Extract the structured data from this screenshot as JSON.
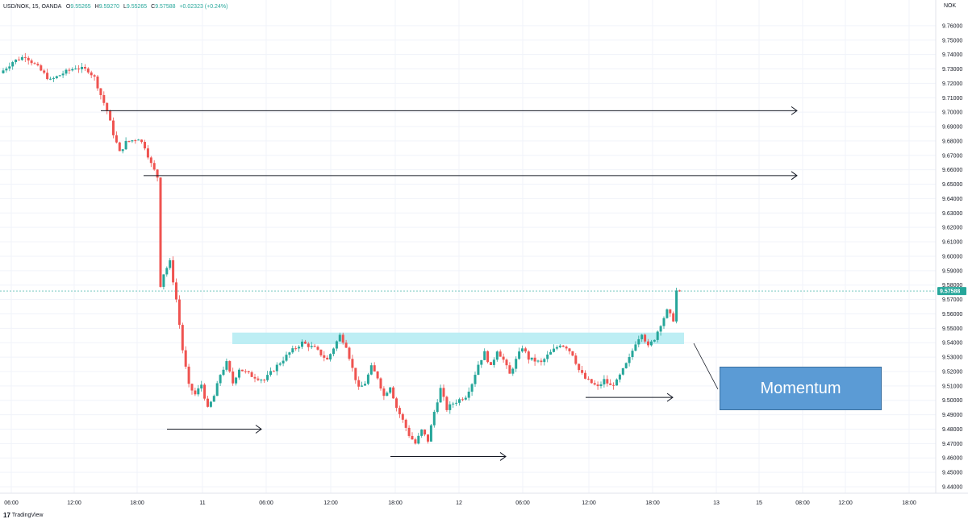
{
  "header": {
    "symbol_line": "USD/NOK, 15, OANDA",
    "open_label": "O",
    "open_value": "9.55265",
    "high_label": "H",
    "high_value": "9.59270",
    "low_label": "L",
    "low_value": "9.55265",
    "close_label": "C",
    "close_value": "9.57588",
    "change": "+0.02323 (+0.24%)",
    "currency": "NOK"
  },
  "branding": {
    "logo_text": "TradingView",
    "logo_mark": "17"
  },
  "annotation": {
    "label": "Momentum"
  },
  "colors": {
    "up": "#26a69a",
    "down": "#ef5350",
    "zone": "#b2ebf2",
    "price_tag": "#26a69a",
    "grid": "#f0f3fa",
    "box": "#5b9bd5"
  },
  "chart_data": {
    "type": "candlestick",
    "title": "USD/NOK, 15, OANDA",
    "currency": "NOK",
    "last_price": "9.57588",
    "ylim": [
      9.44,
      9.77
    ],
    "y_ticks": [
      "9.76000",
      "9.75000",
      "9.74000",
      "9.73000",
      "9.72000",
      "9.71000",
      "9.70000",
      "9.69000",
      "9.68000",
      "9.67000",
      "9.66000",
      "9.65000",
      "9.64000",
      "9.63000",
      "9.62000",
      "9.61000",
      "9.60000",
      "9.59000",
      "9.58000",
      "9.57000",
      "9.56000",
      "9.55000",
      "9.54000",
      "9.53000",
      "9.52000",
      "9.51000",
      "9.50000",
      "9.49000",
      "9.48000",
      "9.47000",
      "9.46000",
      "9.45000",
      "9.44000"
    ],
    "x_ticks": [
      "06:00",
      "12:00",
      "18:00",
      "11",
      "06:00",
      "12:00",
      "18:00",
      "12",
      "06:00",
      "12:00",
      "18:00",
      "13",
      "15",
      "08:00",
      "12:00",
      "18:00"
    ],
    "price_path": [
      [
        0,
        9.727
      ],
      [
        2,
        9.735
      ],
      [
        4,
        9.739
      ],
      [
        6,
        9.731
      ],
      [
        8,
        9.722
      ],
      [
        10,
        9.727
      ],
      [
        12,
        9.731
      ],
      [
        14,
        9.729
      ],
      [
        15,
        9.724
      ],
      [
        16,
        9.712
      ],
      [
        17,
        9.701
      ],
      [
        18,
        9.685
      ],
      [
        19,
        9.672
      ],
      [
        20,
        9.679
      ],
      [
        22,
        9.682
      ],
      [
        23,
        9.676
      ],
      [
        24,
        9.664
      ],
      [
        25,
        9.655
      ],
      [
        25.3,
        9.6
      ],
      [
        25.6,
        9.57
      ],
      [
        26,
        9.588
      ],
      [
        27,
        9.596
      ],
      [
        28,
        9.57
      ],
      [
        29,
        9.535
      ],
      [
        30,
        9.51
      ],
      [
        31,
        9.504
      ],
      [
        32,
        9.511
      ],
      [
        33,
        9.494
      ],
      [
        34,
        9.503
      ],
      [
        35,
        9.518
      ],
      [
        36,
        9.526
      ],
      [
        37,
        9.512
      ],
      [
        38,
        9.522
      ],
      [
        40,
        9.517
      ],
      [
        42,
        9.514
      ],
      [
        44,
        9.524
      ],
      [
        46,
        9.533
      ],
      [
        48,
        9.54
      ],
      [
        50,
        9.536
      ],
      [
        52,
        9.528
      ],
      [
        54,
        9.545
      ],
      [
        55,
        9.538
      ],
      [
        56,
        9.522
      ],
      [
        57,
        9.508
      ],
      [
        58,
        9.512
      ],
      [
        59,
        9.523
      ],
      [
        60,
        9.516
      ],
      [
        61,
        9.503
      ],
      [
        62,
        9.51
      ],
      [
        63,
        9.495
      ],
      [
        64,
        9.486
      ],
      [
        65,
        9.476
      ],
      [
        66,
        9.47
      ],
      [
        67,
        9.479
      ],
      [
        68,
        9.472
      ],
      [
        69,
        9.492
      ],
      [
        70,
        9.508
      ],
      [
        71,
        9.494
      ],
      [
        72,
        9.498
      ],
      [
        74,
        9.503
      ],
      [
        75,
        9.512
      ],
      [
        76,
        9.525
      ],
      [
        77,
        9.533
      ],
      [
        78,
        9.523
      ],
      [
        79,
        9.535
      ],
      [
        80,
        9.528
      ],
      [
        81,
        9.518
      ],
      [
        82,
        9.528
      ],
      [
        83,
        9.537
      ],
      [
        84,
        9.529
      ],
      [
        86,
        9.526
      ],
      [
        87,
        9.531
      ],
      [
        88,
        9.535
      ],
      [
        89,
        9.539
      ],
      [
        90,
        9.537
      ],
      [
        91,
        9.532
      ],
      [
        92,
        9.521
      ],
      [
        93,
        9.515
      ],
      [
        94,
        9.512
      ],
      [
        95,
        9.509
      ],
      [
        96,
        9.514
      ],
      [
        97,
        9.51
      ],
      [
        98,
        9.513
      ],
      [
        99,
        9.521
      ],
      [
        100,
        9.529
      ],
      [
        101,
        9.54
      ],
      [
        102,
        9.547
      ],
      [
        103,
        9.537
      ],
      [
        104,
        9.543
      ],
      [
        105,
        9.553
      ],
      [
        106,
        9.562
      ],
      [
        107,
        9.556
      ],
      [
        107.5,
        9.576
      ]
    ],
    "zone": {
      "low": 9.539,
      "high": 9.547,
      "label": ""
    },
    "levels": [
      {
        "price": 9.701,
        "type": "arrow-right"
      },
      {
        "price": 9.656,
        "type": "arrow-right"
      },
      {
        "price": 9.48,
        "type": "arrow-right"
      },
      {
        "price": 9.461,
        "type": "arrow-right"
      },
      {
        "price": 9.502,
        "type": "arrow-right"
      }
    ]
  }
}
